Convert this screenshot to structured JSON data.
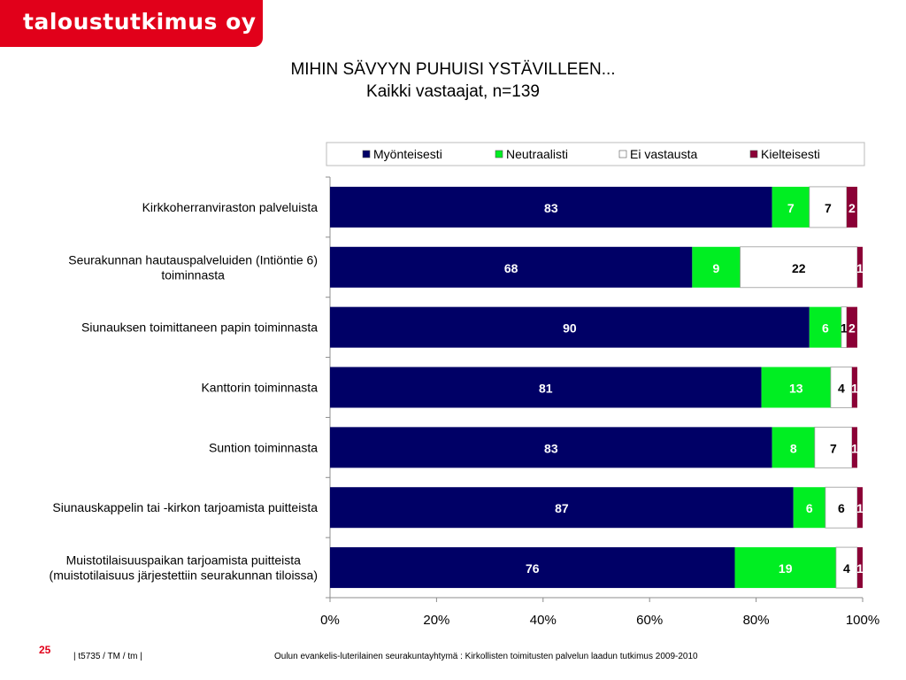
{
  "brand": {
    "logo_text": "taloustutkimus oy",
    "color": "#e1001a"
  },
  "title": {
    "line1": "MIHIN SÄVYYN PUHUISI YSTÄVILLEEN...",
    "line2": "Kaikki vastaajat, n=139"
  },
  "footer": {
    "page_number": "25",
    "code": "|  t5735 / TM / tm |",
    "source": "Oulun evankelis-luterilainen seurakuntayhtymä : Kirkollisten toimitusten palvelun laadun tutkimus 2009-2010"
  },
  "chart_data": {
    "type": "bar",
    "orientation": "horizontal",
    "stacked": true,
    "categories": [
      [
        "Kirkkoherranviraston palveluista"
      ],
      [
        "Seurakunnan hautauspalveluiden (Intiöntie 6)",
        "toiminnasta"
      ],
      [
        "Siunauksen toimittaneen papin toiminnasta"
      ],
      [
        "Kanttorin toiminnasta"
      ],
      [
        "Suntion toiminnasta"
      ],
      [
        "Siunauskappelin tai -kirkon tarjoamista puitteista"
      ],
      [
        "Muistotilaisuuspaikan tarjoamista puitteista",
        "(muistotilaisuus järjestettiin seurakunnan tiloissa)"
      ]
    ],
    "series": [
      {
        "name": "Myönteisesti",
        "color": "#000066",
        "label_color": "#ffffff",
        "values": [
          83,
          68,
          90,
          81,
          83,
          87,
          76
        ]
      },
      {
        "name": "Neutraalisti",
        "color": "#00ee22",
        "label_color": "#ffffff",
        "values": [
          7,
          9,
          6,
          13,
          8,
          6,
          19
        ]
      },
      {
        "name": "Ei vastausta",
        "color": "#ffffff",
        "label_color": "#000000",
        "values": [
          7,
          22,
          1,
          4,
          7,
          6,
          4
        ]
      },
      {
        "name": "Kielteisesti",
        "color": "#8b0036",
        "label_color": "#ffffff",
        "values": [
          2,
          1,
          2,
          1,
          1,
          1,
          1
        ]
      }
    ],
    "xlim": [
      0,
      100
    ],
    "xticks": [
      "0%",
      "20%",
      "40%",
      "60%",
      "80%",
      "100%"
    ],
    "legend_position": "top",
    "grid": false
  }
}
